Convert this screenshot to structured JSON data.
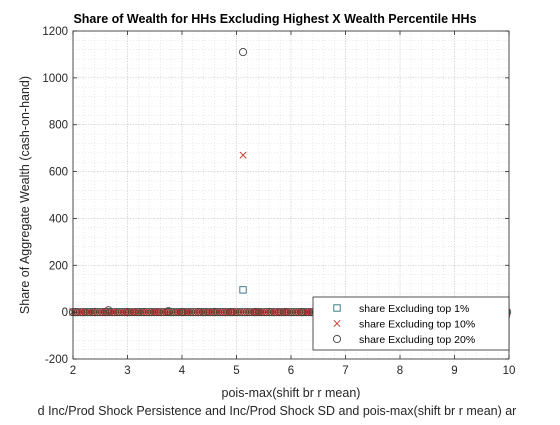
{
  "chart_data": {
    "type": "scatter",
    "title": "Share of Wealth for HHs Excluding Highest X Wealth Percentile HHs",
    "xlabel": "pois-max(shift br r mean)",
    "ylabel": "Share of Aggregate Wealth (cash-on-hand)",
    "footer_label": "d Inc/Prod Shock Persistence and Inc/Prod Shock SD and pois-max(shift br r mean) ar",
    "xlim": [
      2,
      10
    ],
    "ylim": [
      -200,
      1200
    ],
    "xticks": [
      "2",
      "3",
      "4",
      "5",
      "6",
      "7",
      "8",
      "9",
      "10"
    ],
    "yticks": [
      "-200",
      "0",
      "200",
      "400",
      "600",
      "800",
      "1000",
      "1200"
    ],
    "grid": true,
    "minor_grid": true,
    "legend_position": "bottom-right",
    "series": [
      {
        "name": "share Excluding top 1%",
        "marker": "square",
        "color": "#2e6e7e",
        "points": [
          [
            2.0,
            0.5
          ],
          [
            2.3,
            0.3
          ],
          [
            2.6,
            0.8
          ],
          [
            2.9,
            0.4
          ],
          [
            3.2,
            0.6
          ],
          [
            3.5,
            0.5
          ],
          [
            3.8,
            0.7
          ],
          [
            4.1,
            0.4
          ],
          [
            4.4,
            0.6
          ],
          [
            4.7,
            0.5
          ],
          [
            5.12,
            95
          ],
          [
            5.4,
            0.6
          ],
          [
            5.7,
            0.5
          ],
          [
            6.0,
            0.4
          ],
          [
            6.3,
            0.5
          ],
          [
            6.6,
            0.6
          ],
          [
            6.9,
            0.4
          ],
          [
            7.2,
            0.5
          ],
          [
            7.5,
            0.6
          ],
          [
            7.8,
            0.5
          ],
          [
            8.1,
            0.4
          ],
          [
            8.4,
            0.5
          ],
          [
            8.7,
            0.6
          ],
          [
            9.0,
            0.5
          ],
          [
            9.3,
            0.4
          ],
          [
            9.6,
            0.5
          ],
          [
            9.95,
            -8
          ]
        ]
      },
      {
        "name": "share Excluding top 10%",
        "marker": "x",
        "color": "#c0392b",
        "points": [
          [
            2.0,
            0.2
          ],
          [
            2.15,
            0.1
          ],
          [
            2.3,
            0.3
          ],
          [
            2.45,
            0.1
          ],
          [
            2.6,
            0.4
          ],
          [
            2.75,
            0.2
          ],
          [
            2.9,
            0.1
          ],
          [
            3.05,
            0.3
          ],
          [
            3.2,
            0.2
          ],
          [
            3.35,
            0.1
          ],
          [
            3.5,
            0.3
          ],
          [
            3.65,
            0.2
          ],
          [
            3.8,
            0.4
          ],
          [
            3.95,
            0.1
          ],
          [
            4.1,
            0.3
          ],
          [
            4.25,
            0.2
          ],
          [
            4.4,
            0.1
          ],
          [
            4.55,
            0.2
          ],
          [
            4.7,
            0.3
          ],
          [
            4.85,
            0.2
          ],
          [
            5.0,
            0.1
          ],
          [
            5.12,
            670
          ],
          [
            5.25,
            0.2
          ],
          [
            5.4,
            0.3
          ],
          [
            5.55,
            0.1
          ],
          [
            5.7,
            0.2
          ],
          [
            5.85,
            0.3
          ],
          [
            6.0,
            0.2
          ],
          [
            6.15,
            0.1
          ],
          [
            6.3,
            0.2
          ],
          [
            6.45,
            0.3
          ],
          [
            6.6,
            0.2
          ],
          [
            6.75,
            0.1
          ],
          [
            6.9,
            0.2
          ],
          [
            7.05,
            0.3
          ],
          [
            7.2,
            0.2
          ],
          [
            7.35,
            0.1
          ],
          [
            7.5,
            0.2
          ],
          [
            7.65,
            0.3
          ],
          [
            7.8,
            0.2
          ],
          [
            7.95,
            0.1
          ],
          [
            8.1,
            0.2
          ],
          [
            8.25,
            0.3
          ],
          [
            8.4,
            0.2
          ],
          [
            8.55,
            0.1
          ],
          [
            8.7,
            0.2
          ],
          [
            8.85,
            0.3
          ],
          [
            9.0,
            0.2
          ],
          [
            9.15,
            0.1
          ],
          [
            9.3,
            0.2
          ],
          [
            9.45,
            0.3
          ],
          [
            9.6,
            0.2
          ],
          [
            9.75,
            0.1
          ],
          [
            9.95,
            0.2
          ]
        ]
      },
      {
        "name": "share Excluding top 20%",
        "marker": "circle",
        "color": "#404040",
        "points": [
          [
            2.05,
            0.3
          ],
          [
            2.4,
            0.2
          ],
          [
            2.65,
            8
          ],
          [
            3.0,
            0.3
          ],
          [
            3.3,
            0.2
          ],
          [
            3.75,
            4
          ],
          [
            4.0,
            0.3
          ],
          [
            4.3,
            0.2
          ],
          [
            4.6,
            0.3
          ],
          [
            4.9,
            0.2
          ],
          [
            5.12,
            1110
          ],
          [
            5.35,
            0.3
          ],
          [
            5.6,
            0.2
          ],
          [
            5.9,
            0.3
          ],
          [
            6.2,
            0.2
          ],
          [
            6.5,
            0.3
          ],
          [
            6.8,
            0.2
          ],
          [
            7.1,
            0.3
          ],
          [
            7.4,
            0.2
          ],
          [
            7.7,
            0.3
          ],
          [
            8.0,
            0.2
          ],
          [
            8.3,
            0.3
          ],
          [
            8.6,
            0.2
          ],
          [
            8.9,
            0.3
          ],
          [
            9.2,
            0.2
          ],
          [
            9.5,
            0.3
          ],
          [
            9.8,
            0.2
          ]
        ]
      }
    ]
  }
}
